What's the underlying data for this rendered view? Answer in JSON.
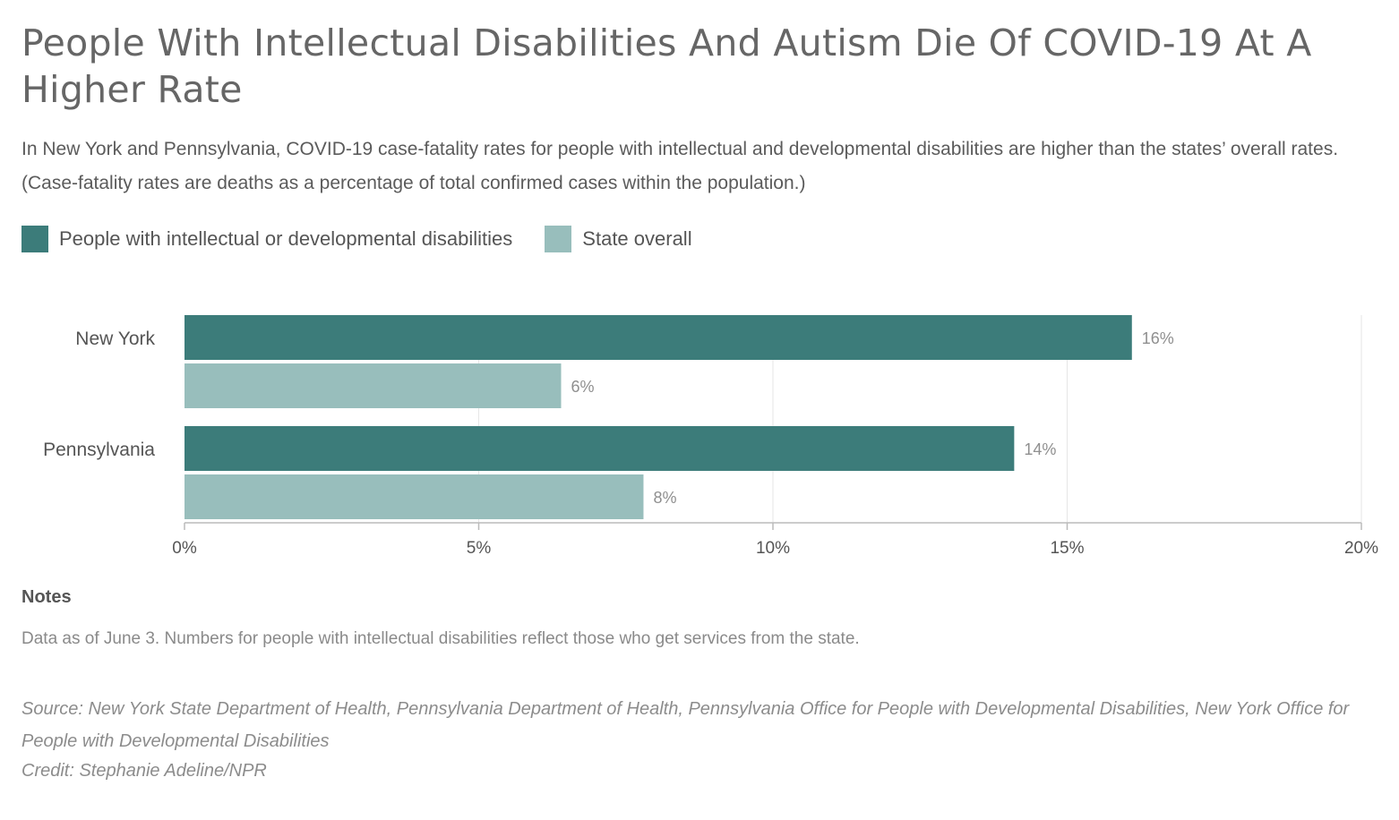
{
  "headline": "People With Intellectual Disabilities And Autism Die Of COVID-19 At A Higher Rate",
  "subtitle": "In New York and Pennsylvania, COVID-19 case-fatality rates for people with intellectual and developmental disabilities are higher than the states’ overall rates. (Case-fatality rates are deaths as a percentage of total confirmed cases within the population.)",
  "legend": [
    {
      "label": "People with intellectual or developmental disabilities",
      "color": "#3c7c7a"
    },
    {
      "label": "State overall",
      "color": "#98bebc"
    }
  ],
  "chart_data": {
    "type": "bar",
    "orientation": "horizontal",
    "categories": [
      "New York",
      "Pennsylvania"
    ],
    "series": [
      {
        "name": "People with intellectual or developmental disabilities",
        "values": [
          16.1,
          14.1
        ],
        "labels": [
          "16%",
          "14%"
        ],
        "color": "#3c7c7a"
      },
      {
        "name": "State overall",
        "values": [
          6.4,
          7.8
        ],
        "labels": [
          "6%",
          "8%"
        ],
        "color": "#98bebc"
      }
    ],
    "xlim": [
      0,
      20
    ],
    "xticks": [
      0,
      5,
      10,
      15,
      20
    ],
    "xtick_labels": [
      "0%",
      "5%",
      "10%",
      "15%",
      "20%"
    ],
    "grid": true,
    "legend_position": "top-left"
  },
  "notes": {
    "title": "Notes",
    "text": "Data as of June 3. Numbers for people with intellectual disabilities reflect those who get services from the state."
  },
  "source": "Source: New York State Department of Health, Pennsylvania Department of Health, Pennsylvania Office for People with Developmental Disabilities, New York Office for People with Developmental Disabilities",
  "credit": "Credit: Stephanie Adeline/NPR"
}
